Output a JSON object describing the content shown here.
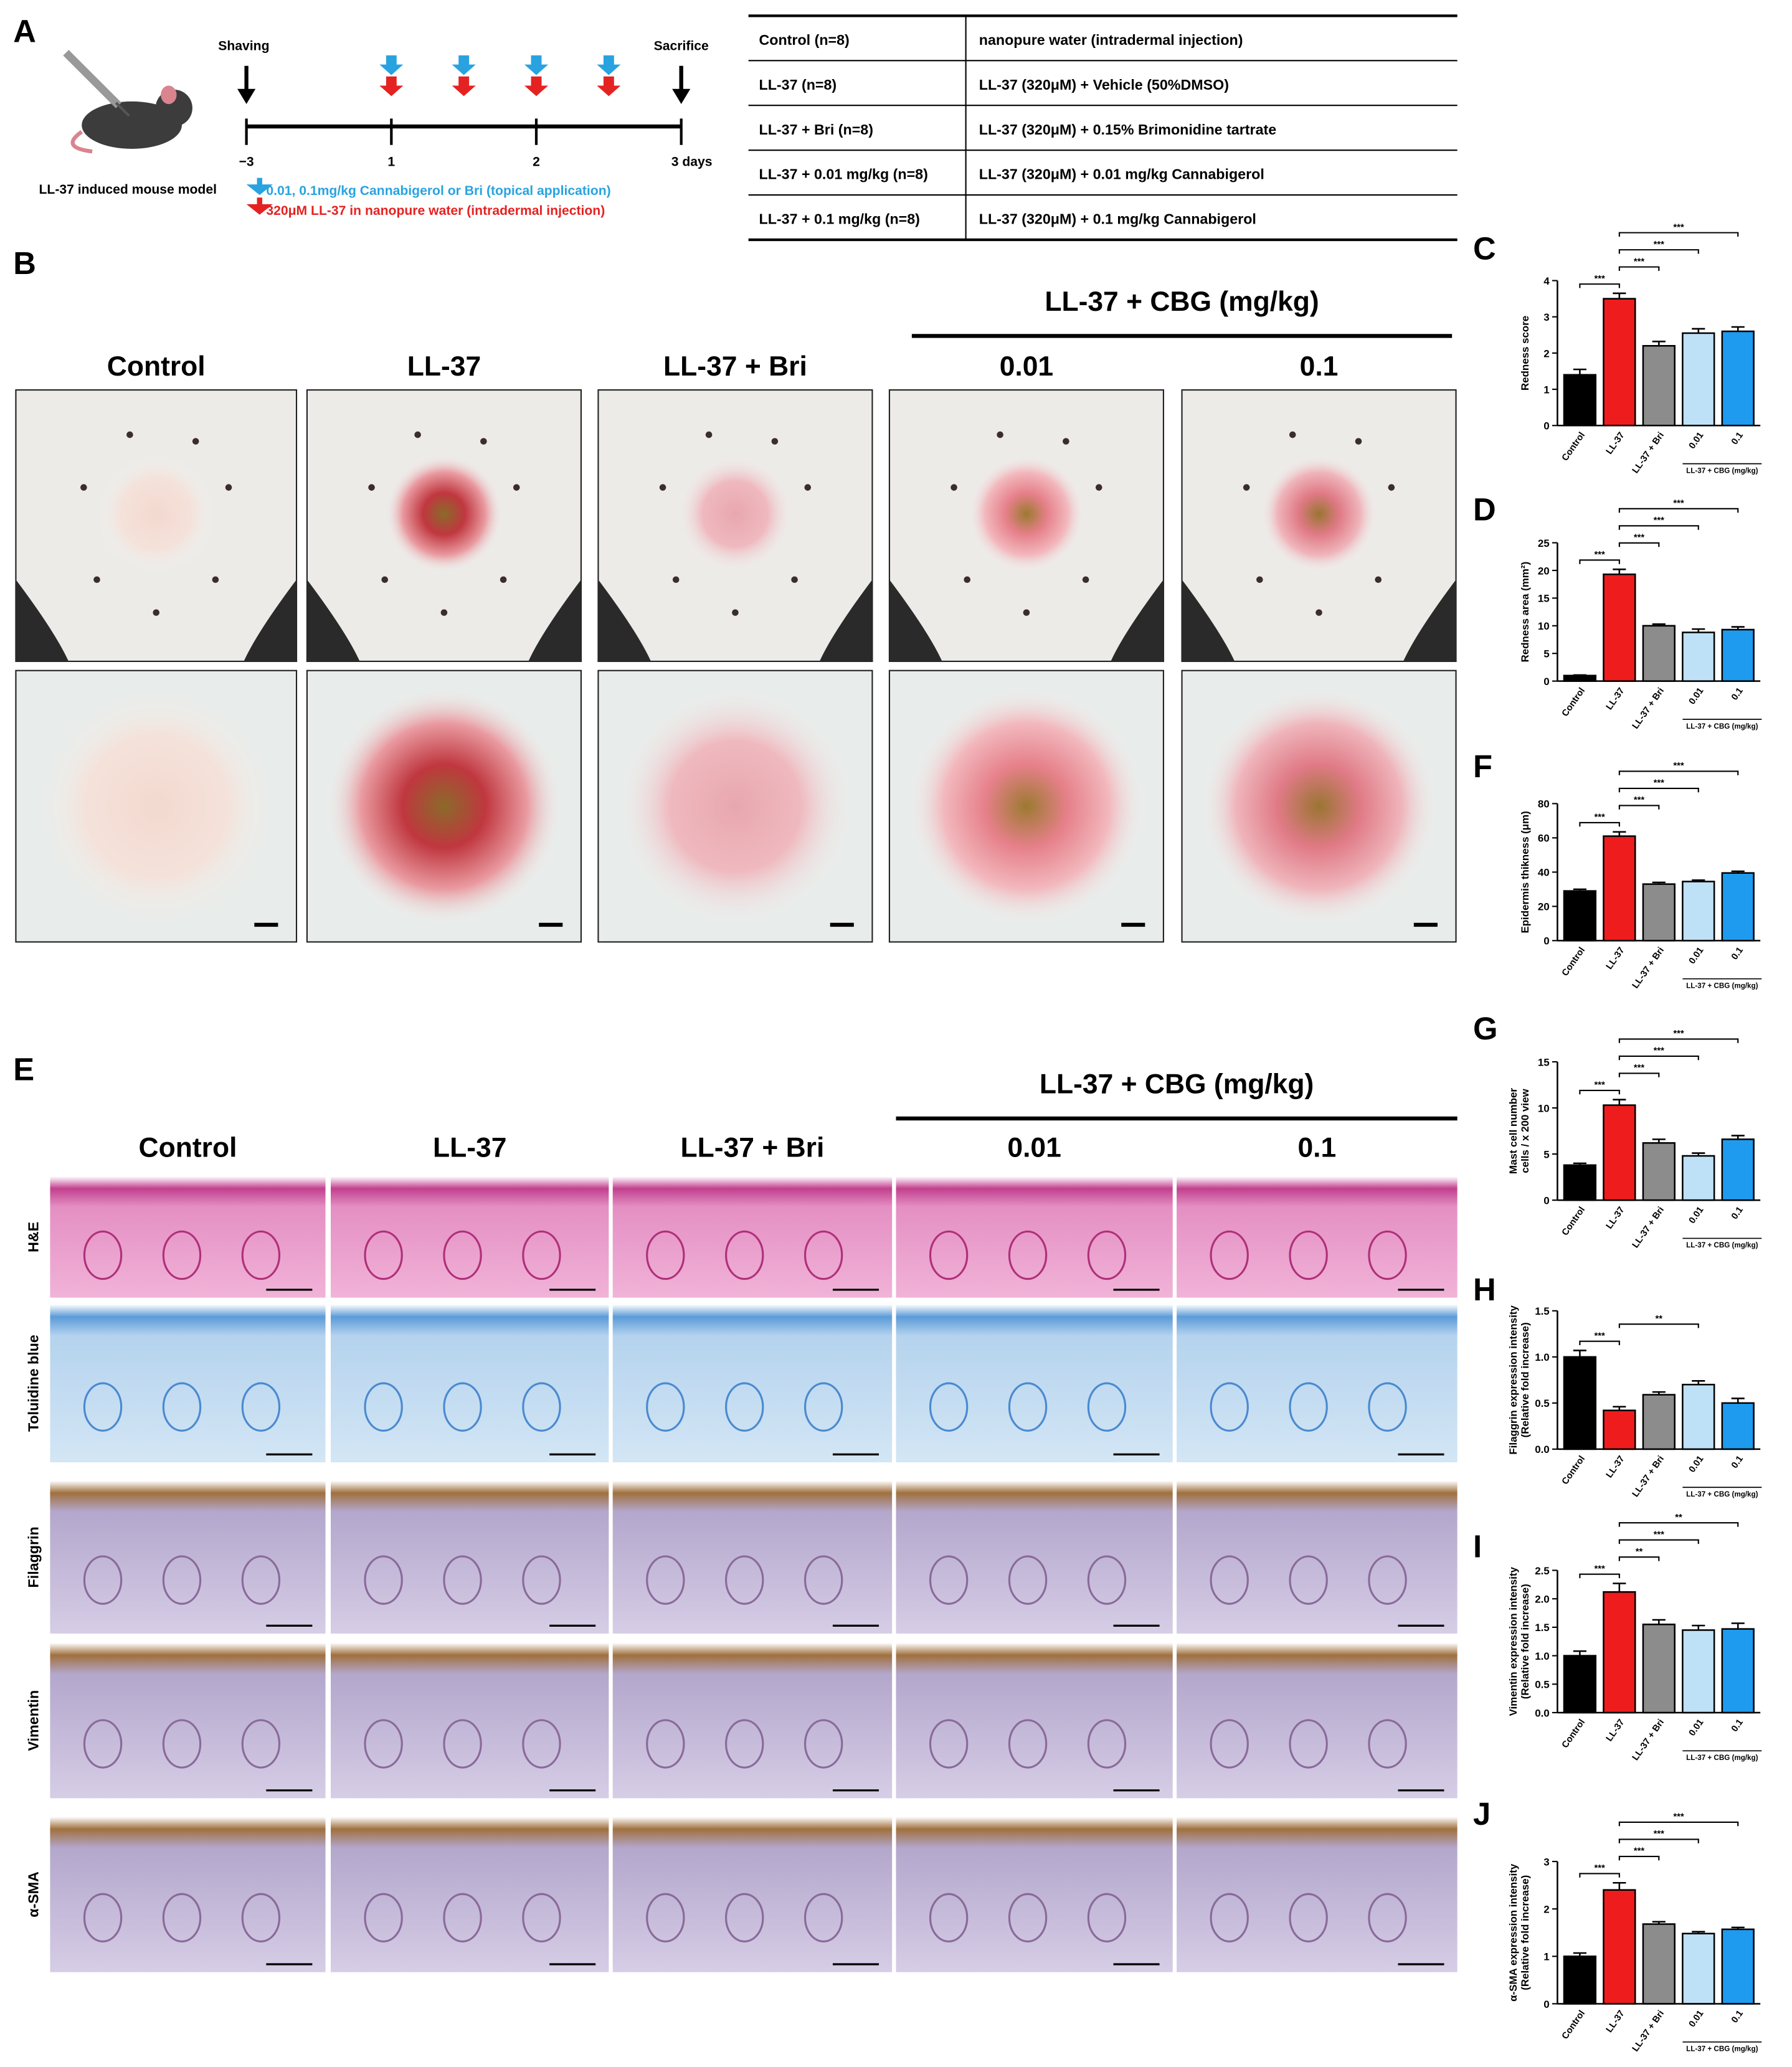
{
  "panel_a": {
    "label": "A",
    "model_caption": "LL-37 induced mouse model",
    "timeline": {
      "start_label": "Shaving",
      "end_label": "Sacrifice",
      "ticks": [
        "−3",
        "1",
        "2",
        "3 days"
      ]
    },
    "legend": {
      "topical": "0.01, 0.1mg/kg Cannabigerol or Bri (topical application)",
      "injection": "320μM LL-37 in nanopure water (intradermal injection)"
    }
  },
  "table": {
    "rows": [
      [
        "Control (n=8)",
        "nanopure water (intradermal injection)"
      ],
      [
        "LL-37 (n=8)",
        "LL-37 (320μM) + Vehicle (50%DMSO)"
      ],
      [
        "LL-37 + Bri (n=8)",
        "LL-37 (320μM) + 0.15% Brimonidine tartrate"
      ],
      [
        "LL-37 + 0.01 mg/kg (n=8)",
        "LL-37 (320μM) + 0.01 mg/kg Cannabigerol"
      ],
      [
        "LL-37 + 0.1 mg/kg (n=8)",
        "LL-37 (320μM) + 0.1 mg/kg Cannabigerol"
      ]
    ]
  },
  "panel_b": {
    "label": "B",
    "group_header": "LL-37 + CBG (mg/kg)",
    "columns": [
      "Control",
      "LL-37",
      "LL-37 + Bri",
      "0.01",
      "0.1"
    ]
  },
  "panel_e": {
    "label": "E",
    "group_header": "LL-37 + CBG (mg/kg)",
    "columns": [
      "Control",
      "LL-37",
      "LL-37 + Bri",
      "0.01",
      "0.1"
    ],
    "rows": [
      "H&E",
      "Toluidine blue",
      "Filaggrin",
      "Vimentin",
      "α-SMA"
    ]
  },
  "chart_data": [
    {
      "type": "bar",
      "label": "C",
      "ylabel": [
        "Redness score"
      ],
      "categories": [
        "Control",
        "LL-37",
        "LL-37 + Bri",
        "0.01",
        "0.1"
      ],
      "group_label": "LL-37 + CBG (mg/kg)",
      "colors": [
        "#000000",
        "#ee1c1c",
        "#8c8c8c",
        "#bfe1f7",
        "#1e9bef"
      ],
      "values": [
        1.4,
        3.5,
        2.2,
        2.55,
        2.6
      ],
      "errors": [
        0.15,
        0.15,
        0.12,
        0.12,
        0.12
      ],
      "ylim": [
        0,
        4
      ],
      "yticks": [
        0,
        1,
        2,
        3,
        4
      ],
      "significance": [
        {
          "from": 0,
          "to": 1,
          "label": "***"
        },
        {
          "from": 1,
          "to": 2,
          "label": "***"
        },
        {
          "from": 1,
          "to": 3,
          "label": "***"
        },
        {
          "from": 1,
          "to": 4,
          "label": "***"
        }
      ]
    },
    {
      "type": "bar",
      "label": "D",
      "ylabel": [
        "Redness area (mm²)"
      ],
      "categories": [
        "Control",
        "LL-37",
        "LL-37 + Bri",
        "0.01",
        "0.1"
      ],
      "group_label": "LL-37 + CBG (mg/kg)",
      "colors": [
        "#000000",
        "#ee1c1c",
        "#8c8c8c",
        "#bfe1f7",
        "#1e9bef"
      ],
      "values": [
        1,
        19.3,
        10,
        8.8,
        9.3
      ],
      "errors": [
        0.1,
        0.9,
        0.3,
        0.6,
        0.5
      ],
      "ylim": [
        0,
        25
      ],
      "yticks": [
        0,
        5,
        10,
        15,
        20,
        25
      ],
      "significance": [
        {
          "from": 0,
          "to": 1,
          "label": "***"
        },
        {
          "from": 1,
          "to": 2,
          "label": "***"
        },
        {
          "from": 1,
          "to": 3,
          "label": "***"
        },
        {
          "from": 1,
          "to": 4,
          "label": "***"
        }
      ]
    },
    {
      "type": "bar",
      "label": "F",
      "ylabel": [
        "Epidermis thikness (μm)"
      ],
      "categories": [
        "Control",
        "LL-37",
        "LL-37 + Bri",
        "0.01",
        "0.1"
      ],
      "group_label": "LL-37 + CBG (mg/kg)",
      "colors": [
        "#000000",
        "#ee1c1c",
        "#8c8c8c",
        "#bfe1f7",
        "#1e9bef"
      ],
      "values": [
        29,
        61,
        33,
        34.5,
        39.5
      ],
      "errors": [
        1,
        2.5,
        1,
        0.8,
        1
      ],
      "ylim": [
        0,
        80
      ],
      "yticks": [
        0,
        20,
        40,
        60,
        80
      ],
      "significance": [
        {
          "from": 0,
          "to": 1,
          "label": "***"
        },
        {
          "from": 1,
          "to": 2,
          "label": "***"
        },
        {
          "from": 1,
          "to": 3,
          "label": "***"
        },
        {
          "from": 1,
          "to": 4,
          "label": "***"
        }
      ]
    },
    {
      "type": "bar",
      "label": "G",
      "ylabel": [
        "Mast cell number",
        "cells / x 200 view"
      ],
      "categories": [
        "Control",
        "LL-37",
        "LL-37 + Bri",
        "0.01",
        "0.1"
      ],
      "group_label": "LL-37 + CBG (mg/kg)",
      "colors": [
        "#000000",
        "#ee1c1c",
        "#8c8c8c",
        "#bfe1f7",
        "#1e9bef"
      ],
      "values": [
        3.8,
        10.3,
        6.2,
        4.8,
        6.6
      ],
      "errors": [
        0.2,
        0.6,
        0.4,
        0.3,
        0.4
      ],
      "ylim": [
        0,
        15
      ],
      "yticks": [
        0,
        5,
        10,
        15
      ],
      "significance": [
        {
          "from": 0,
          "to": 1,
          "label": "***"
        },
        {
          "from": 1,
          "to": 2,
          "label": "***"
        },
        {
          "from": 1,
          "to": 3,
          "label": "***"
        },
        {
          "from": 1,
          "to": 4,
          "label": "***"
        }
      ]
    },
    {
      "type": "bar",
      "label": "H",
      "ylabel": [
        "Filaggrin expression intensity",
        "(Relative fold increase)"
      ],
      "categories": [
        "Control",
        "LL-37",
        "LL-37 + Bri",
        "0.01",
        "0.1"
      ],
      "group_label": "LL-37 + CBG (mg/kg)",
      "colors": [
        "#000000",
        "#ee1c1c",
        "#8c8c8c",
        "#bfe1f7",
        "#1e9bef"
      ],
      "values": [
        1.0,
        0.42,
        0.59,
        0.7,
        0.5
      ],
      "errors": [
        0.07,
        0.04,
        0.03,
        0.04,
        0.05
      ],
      "ylim": [
        0,
        1.5
      ],
      "yticks": [
        {
          "value": 0,
          "label": "0.0"
        },
        0.5,
        {
          "value": 1,
          "label": "1.0"
        },
        1.5
      ],
      "significance": [
        {
          "from": 0,
          "to": 1,
          "label": "***"
        },
        {
          "from": 1,
          "to": 3,
          "label": "**"
        }
      ]
    },
    {
      "type": "bar",
      "label": "I",
      "ylabel": [
        "Vimentin expression intensity",
        "(Relative fold increase)"
      ],
      "categories": [
        "Control",
        "LL-37",
        "LL-37 + Bri",
        "0.01",
        "0.1"
      ],
      "group_label": "LL-37 + CBG (mg/kg)",
      "colors": [
        "#000000",
        "#ee1c1c",
        "#8c8c8c",
        "#bfe1f7",
        "#1e9bef"
      ],
      "values": [
        1.0,
        2.12,
        1.55,
        1.45,
        1.47
      ],
      "errors": [
        0.08,
        0.15,
        0.08,
        0.08,
        0.1
      ],
      "ylim": [
        0,
        2.5
      ],
      "yticks": [
        {
          "value": 0,
          "label": "0.0"
        },
        0.5,
        {
          "value": 1,
          "label": "1.0"
        },
        1.5,
        {
          "value": 2,
          "label": "2.0"
        },
        2.5
      ],
      "significance": [
        {
          "from": 0,
          "to": 1,
          "label": "***"
        },
        {
          "from": 1,
          "to": 2,
          "label": "**"
        },
        {
          "from": 1,
          "to": 3,
          "label": "***"
        },
        {
          "from": 1,
          "to": 4,
          "label": "**"
        }
      ]
    },
    {
      "type": "bar",
      "label": "J",
      "ylabel": [
        "α-SMA expression intensity",
        "(Relative fold increase)"
      ],
      "categories": [
        "Control",
        "LL-37",
        "LL-37 + Bri",
        "0.01",
        "0.1"
      ],
      "group_label": "LL-37 + CBG (mg/kg)",
      "colors": [
        "#000000",
        "#ee1c1c",
        "#8c8c8c",
        "#bfe1f7",
        "#1e9bef"
      ],
      "values": [
        1.0,
        2.4,
        1.68,
        1.48,
        1.57
      ],
      "errors": [
        0.07,
        0.15,
        0.05,
        0.04,
        0.04
      ],
      "ylim": [
        0,
        3
      ],
      "yticks": [
        0,
        1,
        2,
        3
      ],
      "significance": [
        {
          "from": 0,
          "to": 1,
          "label": "***"
        },
        {
          "from": 1,
          "to": 2,
          "label": "***"
        },
        {
          "from": 1,
          "to": 3,
          "label": "***"
        },
        {
          "from": 1,
          "to": 4,
          "label": "***"
        }
      ]
    }
  ]
}
